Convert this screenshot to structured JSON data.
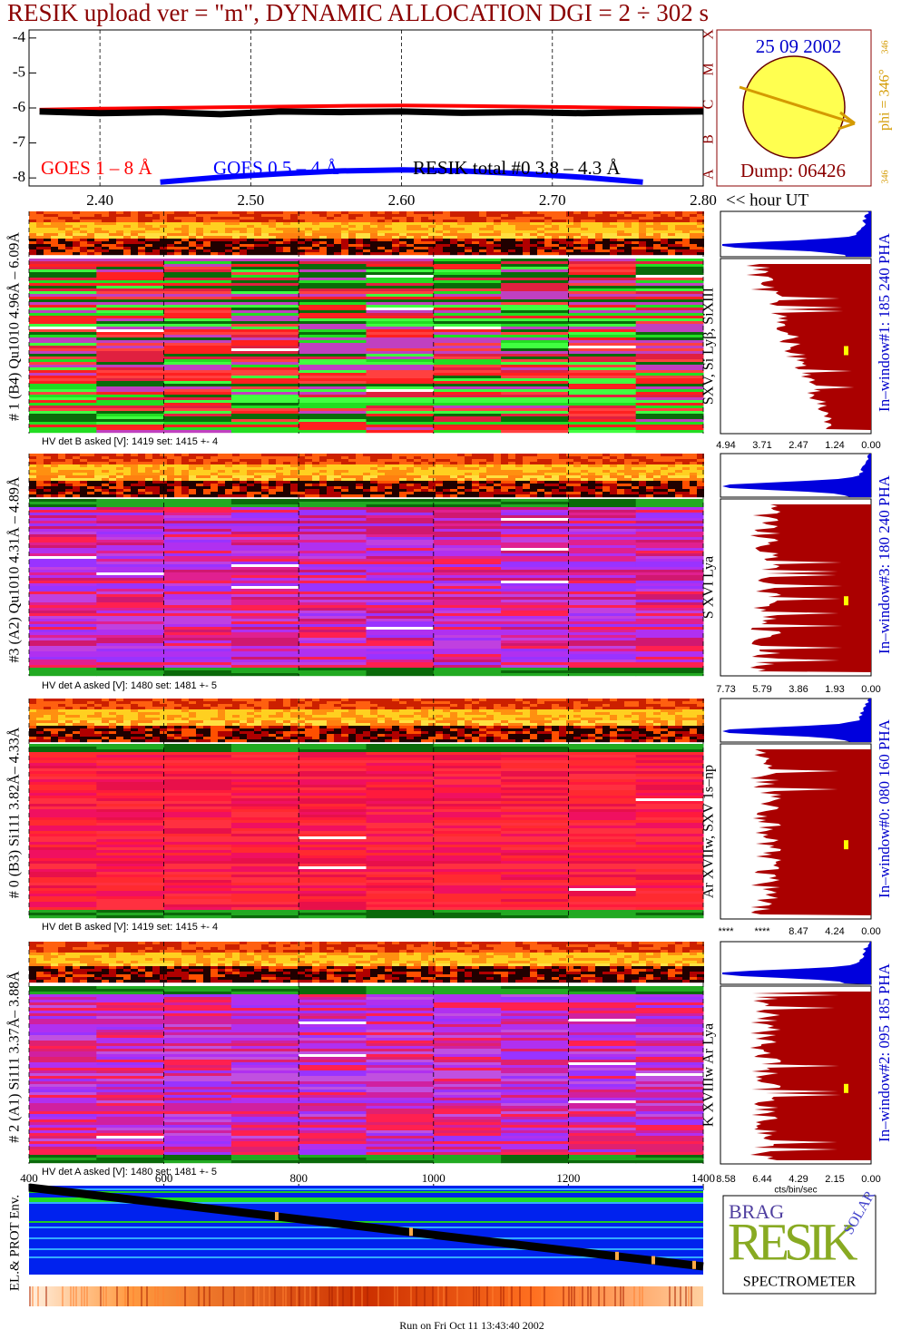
{
  "title": "RESIK upload ver = \"m\", DYNAMIC ALLOCATION  DGI =   2 ÷ 302 s",
  "chart_data": {
    "type": "line",
    "x": [
      2.36,
      2.4,
      2.44,
      2.48,
      2.52,
      2.56,
      2.6,
      2.64,
      2.68,
      2.72,
      2.76,
      2.8
    ],
    "series": [
      {
        "name": "GOES 1 – 8 Å",
        "color": "#ff0000",
        "values": [
          -6.05,
          -6.02,
          -6.0,
          -5.98,
          -5.96,
          -5.94,
          -5.93,
          -5.94,
          -5.96,
          -5.98,
          -6.0,
          -6.02
        ]
      },
      {
        "name": "GOES 0.5 – 4 Å",
        "color": "#0000ff",
        "values": [
          null,
          null,
          -8.12,
          -7.98,
          -7.88,
          -7.8,
          -7.77,
          -7.8,
          -7.88,
          -7.98,
          -8.12,
          null
        ]
      },
      {
        "name": "RESIK total #0  3.8 – 4.3 Å",
        "color": "#000000",
        "values": [
          -6.1,
          -6.15,
          -6.12,
          -6.18,
          -6.1,
          -6.12,
          -6.1,
          -6.14,
          -6.12,
          -6.15,
          -6.12,
          -6.1
        ]
      }
    ],
    "xlim": [
      2.353,
      2.8
    ],
    "xticks": [
      {
        "value": 2.4,
        "label": "2.40"
      },
      {
        "value": 2.5,
        "label": "2.50"
      },
      {
        "value": 2.6,
        "label": "2.60"
      },
      {
        "value": 2.7,
        "label": "2.70"
      },
      {
        "value": 2.8,
        "label": "2.80"
      }
    ],
    "ylim": [
      -8.23,
      -3.77
    ],
    "yticks": [
      -4,
      -5,
      -6,
      -7,
      -8
    ],
    "x_label": "<< hour UT",
    "flare_classes": [
      "X",
      "M",
      "C",
      "B",
      "A"
    ]
  },
  "sun": {
    "date": "25 09 2002",
    "dump": "Dump: 06426",
    "phi": "phi = 346°",
    "phi_small": "346",
    "phi_bottom": "346"
  },
  "panels": [
    {
      "label": "# 1 (B4) Qu1010 4.96Å – 6.09Å",
      "lines": "SXV, Si Lyβ, SiXIII",
      "window": "In–window#1:  185 240 PHA",
      "hv": "HV det B asked [V]:  1419 set:  1415 +-    4",
      "hist_ticks": [
        "4.94",
        "3.71",
        "2.47",
        "1.24",
        "0.00"
      ]
    },
    {
      "label": "#3 (A2) Qu1010  4.31Å – 4.89Å",
      "lines": "S XVI Lya",
      "window": "In–window#3:  180 240 PHA",
      "hv": "HV det A asked [V]:  1480 set:  1481 +-    5",
      "hist_ticks": [
        "7.73",
        "5.79",
        "3.86",
        "1.93",
        "0.00"
      ]
    },
    {
      "label": "# 0 (B3) Si111  3.82Å– 4.33Å",
      "lines": "Ar XVIIw,  SXV 1s–np",
      "window": "In–window#0:  080 160 PHA",
      "hv": "HV det B asked [V]:  1419 set:  1415 +-    4",
      "hist_ticks": [
        "****",
        "****",
        "8.47",
        "4.24",
        "0.00"
      ]
    },
    {
      "label": "# 2 (A1) Si111  3.37Å– 3.88Å",
      "lines": "K XVIIIw  Ar Lya",
      "window": "In–window#2:  095 185 PHA",
      "hv": "HV det A asked [V]:  1480 set:  1481 +-    5",
      "hist_ticks": [
        "8.58",
        "6.44",
        "4.29",
        "2.15",
        "0.00"
      ]
    }
  ],
  "hist_unit": "cts/bin/sec",
  "time_axis": {
    "xlim": [
      400,
      1400
    ],
    "xticks": [
      400,
      600,
      800,
      1000,
      1200,
      1400
    ]
  },
  "env_label": "EL.& PROT Env.",
  "logo": {
    "brag": "BRAG",
    "resik": "RESIK",
    "solar": "SOLAR",
    "spectrometer": "SPECTROMETER"
  },
  "footer": "Run on Fri Oct 11 13:43:40 2002"
}
